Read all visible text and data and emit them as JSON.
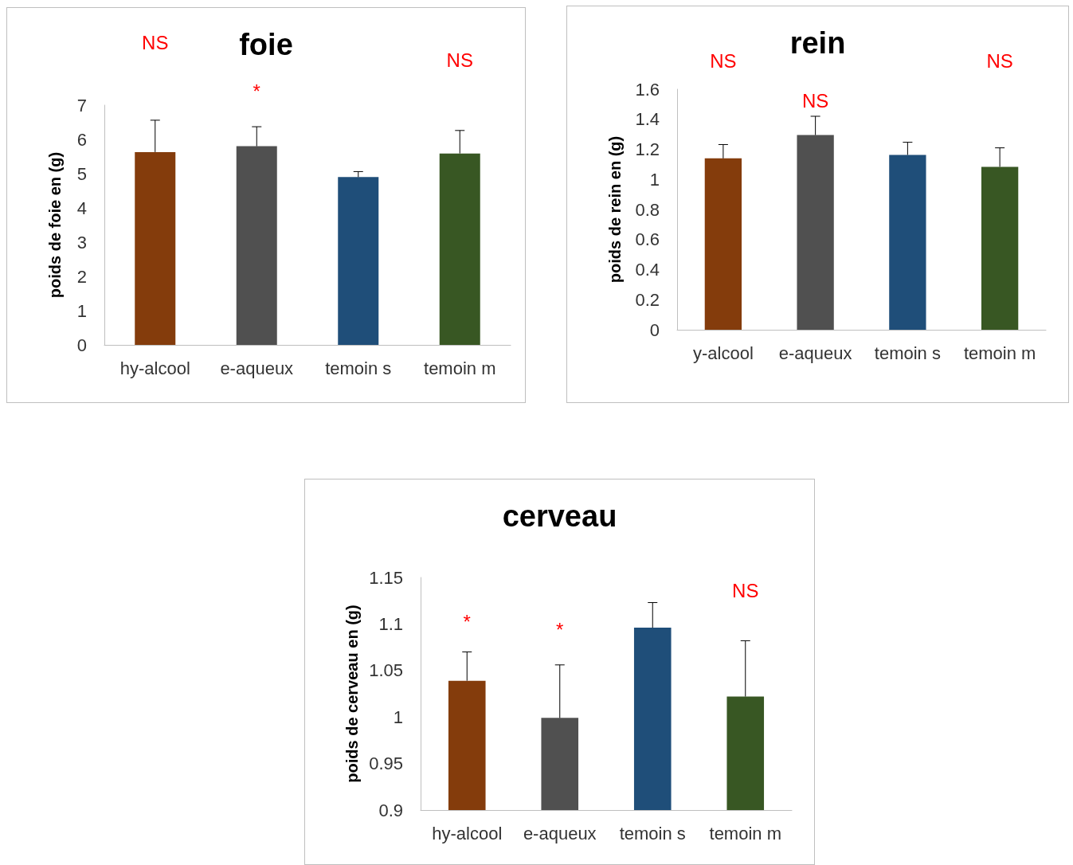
{
  "chart_data": [
    {
      "type": "bar",
      "title": "foie",
      "ylabel": "poids de foie en (g)",
      "categories": [
        "hy-alcool",
        "e-aqueux",
        "temoin s",
        "temoin m"
      ],
      "values": [
        5.63,
        5.8,
        4.9,
        5.59
      ],
      "colors": [
        "#843c0c",
        "#505050",
        "#1f4e79",
        "#385723"
      ],
      "errors": [
        [
          5.63,
          6.56
        ],
        [
          5.8,
          6.37
        ],
        [
          4.9,
          5.06
        ],
        [
          5.59,
          6.26
        ]
      ],
      "ylim": [
        0,
        7
      ],
      "yticks": [
        0,
        1,
        2,
        3,
        4,
        5,
        6,
        7
      ],
      "annotations": [
        "NS",
        "*",
        "NS"
      ]
    },
    {
      "type": "bar",
      "title": "rein",
      "ylabel": "poids de rein en (g)",
      "categories": [
        "y-alcool",
        "e-aqueux",
        "temoin s",
        "temoin m"
      ],
      "values": [
        1.14,
        1.295,
        1.163,
        1.084
      ],
      "colors": [
        "#843c0c",
        "#505050",
        "#1f4e79",
        "#385723"
      ],
      "errors": [
        [
          1.14,
          1.232
        ],
        [
          1.295,
          1.42
        ],
        [
          1.163,
          1.247
        ],
        [
          1.084,
          1.21
        ]
      ],
      "ylim": [
        0,
        1.6
      ],
      "yticks": [
        0,
        0.2,
        0.4,
        0.6,
        0.8,
        1,
        1.2,
        1.4,
        1.6
      ],
      "annotations": [
        "NS",
        "NS",
        "NS"
      ]
    },
    {
      "type": "bar",
      "title": "cerveau",
      "ylabel": "poids de cerveau en (g)",
      "categories": [
        "hy-alcool",
        "e-aqueux",
        "temoin s",
        "temoin m"
      ],
      "values": [
        1.039,
        0.999,
        1.096,
        1.022
      ],
      "colors": [
        "#843c0c",
        "#505050",
        "#1f4e79",
        "#385723"
      ],
      "errors": [
        [
          1.039,
          1.07
        ],
        [
          0.999,
          1.056
        ],
        [
          1.096,
          1.123
        ],
        [
          1.022,
          1.082
        ]
      ],
      "ylim": [
        0.9,
        1.15
      ],
      "yticks": [
        0.9,
        0.95,
        1,
        1.05,
        1.1,
        1.15
      ],
      "annotations": [
        "*",
        "*",
        "NS"
      ]
    }
  ]
}
